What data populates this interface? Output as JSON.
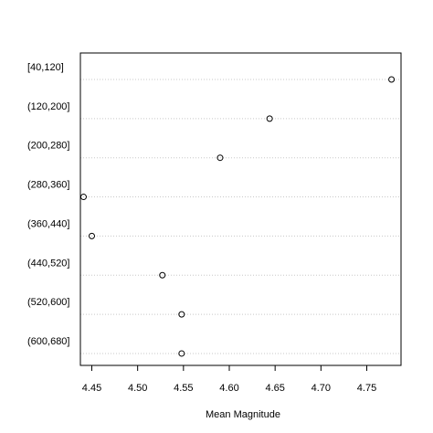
{
  "chart_data": {
    "type": "scatter",
    "title": "",
    "xlabel": "Mean Magnitude",
    "ylabel": "",
    "categories": [
      "[40,120]",
      "(120,200]",
      "(200,280]",
      "(280,360]",
      "(360,440]",
      "(440,520]",
      "(520,600]",
      "(600,680]"
    ],
    "values": [
      4.777,
      4.644,
      4.59,
      4.441,
      4.45,
      4.527,
      4.548,
      4.548
    ],
    "xlim": [
      4.43,
      4.785
    ],
    "xticks": [
      4.45,
      4.5,
      4.55,
      4.6,
      4.65,
      4.7,
      4.75
    ],
    "xtick_labels": [
      "4.45",
      "4.50",
      "4.55",
      "4.60",
      "4.65",
      "4.70",
      "4.75"
    ],
    "grid": "horizontal dotted",
    "colors": {
      "frame": "#000000",
      "grid": "#c8c8c8",
      "point": "#000000"
    }
  }
}
